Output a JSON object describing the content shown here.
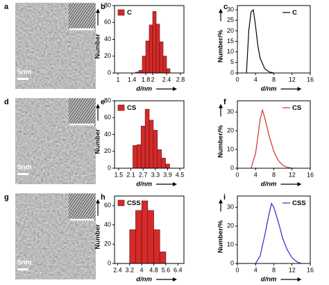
{
  "images": [
    {
      "panel": "a",
      "scale_label": "5nm"
    },
    {
      "panel": "d",
      "scale_label": "5nm"
    },
    {
      "panel": "g",
      "scale_label": "5nm"
    }
  ],
  "chart_data": [
    {
      "type": "histogram",
      "panel": "b",
      "xlabel": "d/nm",
      "ylabel": "Number",
      "bins": [
        1.5,
        1.6,
        1.7,
        1.8,
        1.9,
        2.0,
        2.1,
        2.2,
        2.3,
        2.4,
        2.5
      ],
      "series": [
        {
          "name": "C",
          "color": "#d42a2a",
          "values": [
            1,
            3,
            20,
            38,
            57,
            73,
            58,
            37,
            20,
            5
          ]
        }
      ],
      "xlim": [
        0.9,
        2.9
      ],
      "xticks": [
        1,
        1.4,
        1.8,
        2,
        2.4,
        2.8
      ],
      "ylim": [
        0,
        80
      ],
      "yticks": [
        0,
        20,
        40,
        60,
        80
      ],
      "legend": "upper left"
    },
    {
      "type": "line",
      "panel": "c",
      "xlabel": "d/nm",
      "ylabel": "Number/%",
      "x": [
        2,
        2.5,
        3,
        3.5,
        4,
        4.5,
        5,
        6,
        7,
        8
      ],
      "series": [
        {
          "name": "C",
          "color": "#000000",
          "values": [
            0,
            20,
            29,
            30,
            22,
            13,
            7,
            2,
            0.5,
            0
          ]
        }
      ],
      "xlim": [
        0,
        16
      ],
      "xticks": [
        0,
        4,
        8,
        12,
        16
      ],
      "ylim": [
        0,
        32
      ],
      "yticks": [
        0,
        5,
        10,
        15,
        20,
        25,
        30
      ],
      "legend": "upper right"
    },
    {
      "type": "histogram",
      "panel": "e",
      "xlabel": "d/nm",
      "ylabel": "Number",
      "bins": [
        2.2,
        2.4,
        2.6,
        2.8,
        3.0,
        3.2,
        3.4,
        3.6,
        3.8,
        4.0
      ],
      "series": [
        {
          "name": "CS",
          "color": "#d42a2a",
          "values": [
            27,
            28,
            50,
            70,
            57,
            45,
            22,
            12,
            5
          ]
        }
      ],
      "xlim": [
        1.3,
        4.7
      ],
      "xticks": [
        1.5,
        2.1,
        2.7,
        3.3,
        3.9,
        4.5
      ],
      "ylim": [
        0,
        80
      ],
      "yticks": [
        0,
        20,
        40,
        60,
        80
      ],
      "legend": "upper left"
    },
    {
      "type": "line",
      "panel": "f",
      "xlabel": "d/nm",
      "ylabel": "Number/%",
      "x": [
        3,
        4,
        5,
        5.5,
        6,
        7,
        8,
        9,
        10,
        11,
        12
      ],
      "series": [
        {
          "name": "CS",
          "color": "#d42a2a",
          "values": [
            0,
            8,
            26,
            31,
            27,
            17,
            9,
            4,
            1.5,
            0.5,
            0
          ]
        }
      ],
      "xlim": [
        0,
        16
      ],
      "xticks": [
        0,
        4,
        8,
        12,
        16
      ],
      "ylim": [
        0,
        36
      ],
      "yticks": [
        0,
        10,
        20,
        30
      ],
      "legend": "upper right"
    },
    {
      "type": "histogram",
      "panel": "h",
      "xlabel": "d/nm",
      "ylabel": "Number",
      "bins": [
        3.2,
        3.6,
        4.0,
        4.4,
        4.8,
        5.2,
        5.6
      ],
      "series": [
        {
          "name": "CSS",
          "color": "#d42a2a",
          "values": [
            35,
            55,
            65,
            55,
            35,
            12
          ]
        }
      ],
      "xlim": [
        2.2,
        6.8
      ],
      "xticks": [
        2.4,
        3.2,
        4.0,
        4.8,
        5.6,
        6.4
      ],
      "ylim": [
        0,
        70
      ],
      "yticks": [
        0,
        20,
        40,
        60
      ],
      "legend": "upper left"
    },
    {
      "type": "line",
      "panel": "i",
      "xlabel": "d/nm",
      "ylabel": "Number/%",
      "x": [
        4,
        5,
        6,
        7,
        7.5,
        8,
        9,
        10,
        11,
        12,
        13,
        14
      ],
      "series": [
        {
          "name": "CSS",
          "color": "#2a2ac8",
          "values": [
            0,
            4,
            15,
            27,
            32,
            30,
            22,
            13,
            7,
            3,
            1,
            0
          ]
        }
      ],
      "xlim": [
        0,
        16
      ],
      "xticks": [
        0,
        4,
        8,
        12,
        16
      ],
      "ylim": [
        0,
        36
      ],
      "yticks": [
        0,
        10,
        20,
        30
      ],
      "legend": "upper right"
    }
  ]
}
